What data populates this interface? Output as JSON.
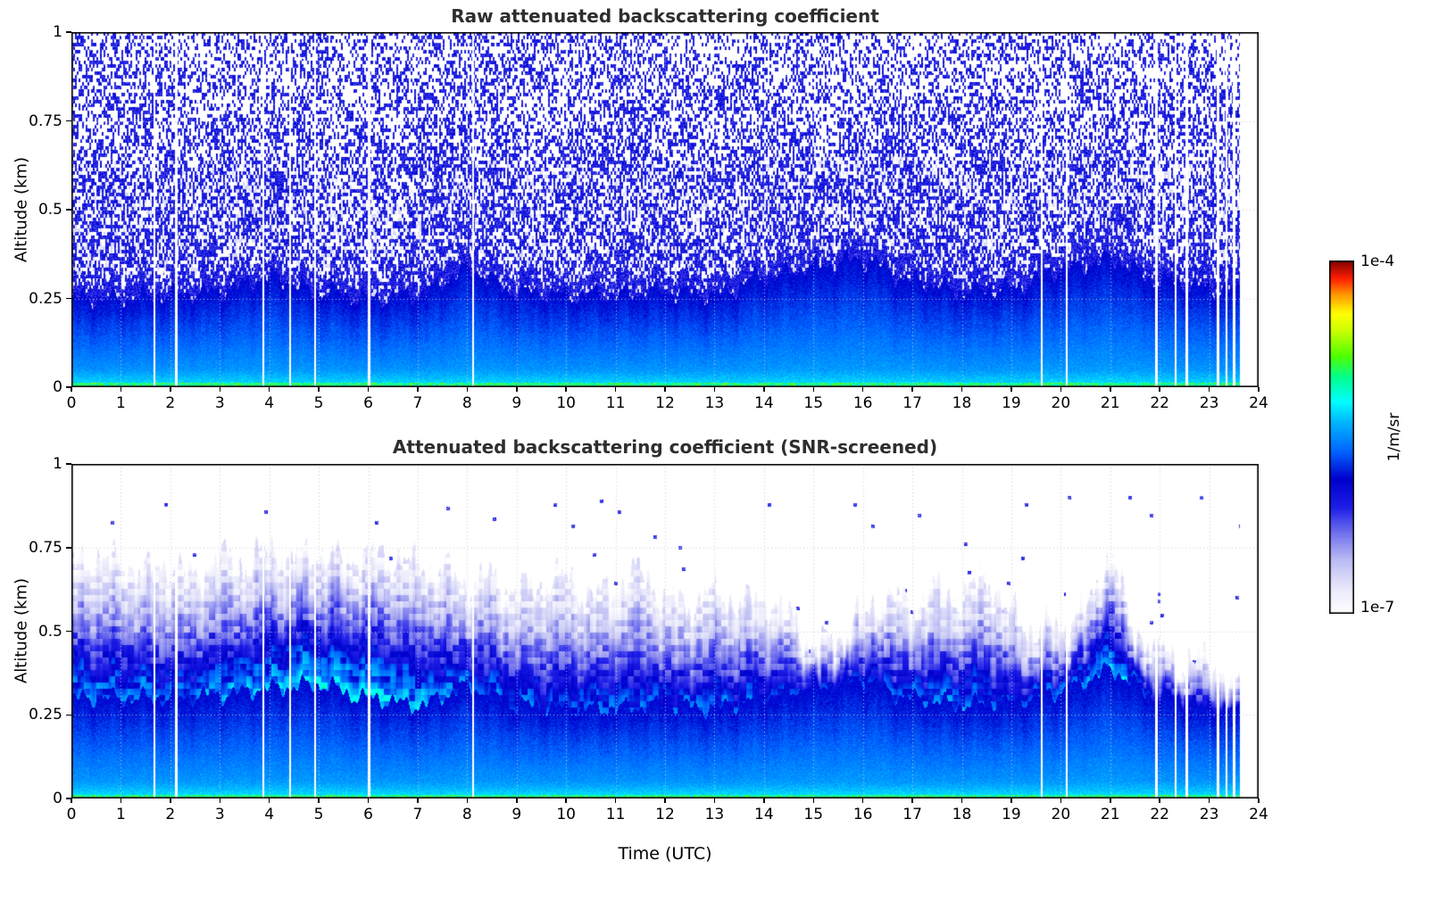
{
  "figure": {
    "background": "#ffffff"
  },
  "chart_data": {
    "type": "heatmap",
    "xlabel": "Time (UTC)",
    "x_range": [
      0,
      24
    ],
    "x_ticks": [
      0,
      1,
      2,
      3,
      4,
      5,
      6,
      7,
      8,
      9,
      10,
      11,
      12,
      13,
      14,
      15,
      16,
      17,
      18,
      19,
      20,
      21,
      22,
      23,
      24
    ],
    "y_range": [
      0,
      1
    ],
    "y_ticks": [
      "0",
      "0.25",
      "0.5",
      "0.75",
      "1"
    ],
    "y_tick_values": [
      0,
      0.25,
      0.5,
      0.75,
      1
    ],
    "data_end_utc": 23.62,
    "gap_times_utc": [
      1.68,
      2.12,
      3.88,
      4.42,
      4.93,
      6.02,
      8.12,
      19.62,
      20.12,
      21.93,
      22.32,
      22.55,
      23.18,
      23.35,
      23.5
    ],
    "colorbar": {
      "min_label": "1e-7",
      "max_label": "1e-4",
      "unit": "1/m/sr",
      "scale": "log"
    },
    "colormap": {
      "stops": [
        [
          0.0,
          "#ffffff"
        ],
        [
          0.07,
          "#e9e9fb"
        ],
        [
          0.15,
          "#bcbcf4"
        ],
        [
          0.22,
          "#7878ee"
        ],
        [
          0.3,
          "#1e1ee8"
        ],
        [
          0.38,
          "#0000cd"
        ],
        [
          0.46,
          "#0064ff"
        ],
        [
          0.54,
          "#00b4ff"
        ],
        [
          0.6,
          "#00ffff"
        ],
        [
          0.67,
          "#00ff8c"
        ],
        [
          0.73,
          "#50ff00"
        ],
        [
          0.8,
          "#c8ff00"
        ],
        [
          0.85,
          "#ffff00"
        ],
        [
          0.9,
          "#ffa000"
        ],
        [
          0.95,
          "#ff1e00"
        ],
        [
          1.0,
          "#7f0000"
        ]
      ]
    },
    "panels": [
      {
        "id": "raw",
        "title": "Raw attenuated backscattering coefficient",
        "ylabel": "Altitude (km)",
        "boundary_layer_top_km": [
          0.25,
          0.25,
          0.26,
          0.27,
          0.31,
          0.27,
          0.25,
          0.26,
          0.33,
          0.27,
          0.26,
          0.26,
          0.27,
          0.26,
          0.31,
          0.34,
          0.36,
          0.3,
          0.27,
          0.28,
          0.33,
          0.36,
          0.3,
          0.28,
          0.26
        ]
      },
      {
        "id": "snr_screened",
        "title": "Attenuated backscattering coefficient (SNR-screened)",
        "ylabel": "Altitude (km)",
        "boundary_layer_top_km": [
          0.3,
          0.3,
          0.3,
          0.31,
          0.33,
          0.34,
          0.3,
          0.28,
          0.33,
          0.28,
          0.27,
          0.27,
          0.28,
          0.27,
          0.3,
          0.33,
          0.35,
          0.3,
          0.28,
          0.29,
          0.32,
          0.38,
          0.3,
          0.27,
          0.25
        ],
        "aerosol_top_km": [
          0.7,
          0.72,
          0.7,
          0.68,
          0.7,
          0.66,
          0.72,
          0.7,
          0.74,
          0.72,
          0.73,
          0.71,
          0.73,
          0.72,
          0.7,
          0.68,
          0.64,
          0.66,
          0.62,
          0.64,
          0.66,
          0.6,
          0.63,
          0.68,
          0.6,
          0.58,
          0.62,
          0.58,
          0.6,
          0.55,
          0.45,
          0.48,
          0.55,
          0.6,
          0.58,
          0.62,
          0.6,
          0.66,
          0.55,
          0.5,
          0.52,
          0.56,
          0.73,
          0.5,
          0.45,
          0.4,
          0.42,
          0.33,
          0.28
        ],
        "plume_density": [
          1.05,
          1.0,
          0.95,
          1.05,
          1.15,
          1.3,
          1.3,
          1.15,
          0.95,
          0.9,
          0.85,
          0.9,
          0.85,
          0.9,
          0.85,
          0.7,
          0.8,
          0.9,
          1.0,
          0.8,
          0.9,
          1.2,
          0.7,
          0.55,
          0.45
        ]
      }
    ]
  }
}
